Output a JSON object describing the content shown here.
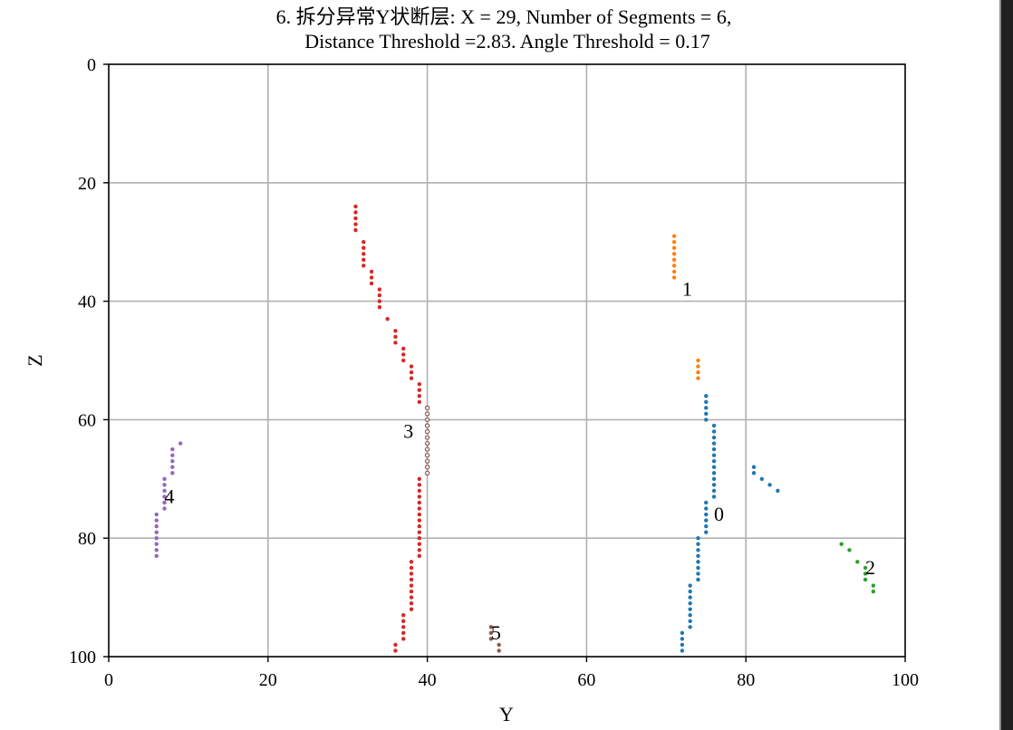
{
  "chart_data": {
    "type": "scatter",
    "title_line1": "6. 拆分异常Y状断层: X = 29, Number of Segments = 6,",
    "title_line2": "Distance Threshold =2.83. Angle Threshold = 0.17",
    "xlabel": "Y",
    "ylabel": "Z",
    "xlim": [
      0,
      100
    ],
    "ylim": [
      0,
      100
    ],
    "y_inverted": true,
    "grid": true,
    "x_ticks": [
      0,
      20,
      40,
      60,
      80,
      100
    ],
    "y_ticks": [
      0,
      20,
      40,
      60,
      80,
      100
    ],
    "colors": {
      "blue": "#1f77b4",
      "orange": "#ff7f0e",
      "green": "#2ca02c",
      "red": "#d62728",
      "purple": "#9467bd",
      "brown": "#8c564b",
      "grid": "#b0b0b0"
    },
    "series": [
      {
        "label": "0",
        "color": "blue",
        "label_pos": [
          76,
          76
        ],
        "points": [
          [
            75,
            56
          ],
          [
            75,
            57
          ],
          [
            75,
            58
          ],
          [
            75,
            59
          ],
          [
            75,
            60
          ],
          [
            76,
            61
          ],
          [
            76,
            62
          ],
          [
            76,
            63
          ],
          [
            76,
            64
          ],
          [
            76,
            65
          ],
          [
            76,
            66
          ],
          [
            76,
            67
          ],
          [
            76,
            68
          ],
          [
            76,
            69
          ],
          [
            76,
            70
          ],
          [
            76,
            71
          ],
          [
            76,
            72
          ],
          [
            76,
            73
          ],
          [
            75,
            74
          ],
          [
            75,
            75
          ],
          [
            75,
            76
          ],
          [
            75,
            77
          ],
          [
            75,
            78
          ],
          [
            75,
            79
          ],
          [
            74,
            80
          ],
          [
            74,
            81
          ],
          [
            74,
            82
          ],
          [
            74,
            83
          ],
          [
            74,
            84
          ],
          [
            74,
            85
          ],
          [
            74,
            86
          ],
          [
            74,
            87
          ],
          [
            73,
            88
          ],
          [
            73,
            89
          ],
          [
            73,
            90
          ],
          [
            73,
            91
          ],
          [
            73,
            92
          ],
          [
            73,
            93
          ],
          [
            73,
            94
          ],
          [
            73,
            95
          ],
          [
            72,
            96
          ],
          [
            72,
            97
          ],
          [
            72,
            98
          ],
          [
            72,
            99
          ],
          [
            81,
            68
          ],
          [
            81,
            69
          ],
          [
            82,
            70
          ],
          [
            83,
            71
          ],
          [
            84,
            72
          ]
        ]
      },
      {
        "label": "1",
        "color": "orange",
        "label_pos": [
          72,
          38
        ],
        "points": [
          [
            71,
            29
          ],
          [
            71,
            30
          ],
          [
            71,
            31
          ],
          [
            71,
            32
          ],
          [
            71,
            33
          ],
          [
            71,
            34
          ],
          [
            71,
            35
          ],
          [
            71,
            36
          ],
          [
            74,
            50
          ],
          [
            74,
            51
          ],
          [
            74,
            52
          ],
          [
            74,
            53
          ]
        ]
      },
      {
        "label": "2",
        "color": "green",
        "label_pos": [
          95,
          85
        ],
        "points": [
          [
            92,
            81
          ],
          [
            93,
            82
          ],
          [
            94,
            84
          ],
          [
            95,
            85
          ],
          [
            95,
            86
          ],
          [
            95,
            87
          ],
          [
            96,
            88
          ],
          [
            96,
            89
          ]
        ]
      },
      {
        "label": "3",
        "color": "red",
        "label_pos": [
          37,
          62
        ],
        "points": [
          [
            31,
            24
          ],
          [
            31,
            25
          ],
          [
            31,
            26
          ],
          [
            31,
            27
          ],
          [
            31,
            28
          ],
          [
            32,
            30
          ],
          [
            32,
            31
          ],
          [
            32,
            32
          ],
          [
            32,
            33
          ],
          [
            32,
            34
          ],
          [
            33,
            35
          ],
          [
            33,
            36
          ],
          [
            33,
            37
          ],
          [
            34,
            38
          ],
          [
            34,
            39
          ],
          [
            34,
            40
          ],
          [
            34,
            41
          ],
          [
            35,
            43
          ],
          [
            36,
            45
          ],
          [
            36,
            46
          ],
          [
            36,
            47
          ],
          [
            37,
            48
          ],
          [
            37,
            49
          ],
          [
            37,
            50
          ],
          [
            38,
            51
          ],
          [
            38,
            52
          ],
          [
            38,
            53
          ],
          [
            39,
            54
          ],
          [
            39,
            55
          ],
          [
            39,
            56
          ],
          [
            39,
            57
          ],
          [
            39,
            70
          ],
          [
            39,
            71
          ],
          [
            39,
            72
          ],
          [
            39,
            73
          ],
          [
            39,
            74
          ],
          [
            39,
            75
          ],
          [
            39,
            76
          ],
          [
            39,
            77
          ],
          [
            39,
            78
          ],
          [
            39,
            79
          ],
          [
            39,
            80
          ],
          [
            39,
            81
          ],
          [
            39,
            82
          ],
          [
            39,
            83
          ],
          [
            38,
            84
          ],
          [
            38,
            85
          ],
          [
            38,
            86
          ],
          [
            38,
            87
          ],
          [
            38,
            88
          ],
          [
            38,
            89
          ],
          [
            38,
            90
          ],
          [
            38,
            91
          ],
          [
            38,
            92
          ],
          [
            37,
            93
          ],
          [
            37,
            94
          ],
          [
            37,
            95
          ],
          [
            37,
            96
          ],
          [
            37,
            97
          ],
          [
            36,
            98
          ],
          [
            36,
            99
          ]
        ]
      },
      {
        "label": "4",
        "color": "purple",
        "label_pos": [
          7,
          73
        ],
        "points": [
          [
            9,
            64
          ],
          [
            8,
            65
          ],
          [
            8,
            66
          ],
          [
            8,
            67
          ],
          [
            8,
            68
          ],
          [
            8,
            69
          ],
          [
            7,
            70
          ],
          [
            7,
            71
          ],
          [
            7,
            72
          ],
          [
            7,
            73
          ],
          [
            7,
            74
          ],
          [
            7,
            75
          ],
          [
            6,
            76
          ],
          [
            6,
            77
          ],
          [
            6,
            78
          ],
          [
            6,
            79
          ],
          [
            6,
            80
          ],
          [
            6,
            81
          ],
          [
            6,
            82
          ],
          [
            6,
            83
          ]
        ]
      },
      {
        "label": "5",
        "color": "brown",
        "label_pos": [
          48,
          96
        ],
        "points": [
          [
            48,
            95
          ],
          [
            48,
            96
          ],
          [
            48,
            97
          ],
          [
            49,
            98
          ],
          [
            49,
            99
          ]
        ]
      }
    ],
    "extra_series": [
      {
        "color": "brown",
        "hollow": true,
        "points": [
          [
            40,
            58
          ],
          [
            40,
            59
          ],
          [
            40,
            60
          ],
          [
            40,
            61
          ],
          [
            40,
            62
          ],
          [
            40,
            63
          ],
          [
            40,
            64
          ],
          [
            40,
            65
          ],
          [
            40,
            66
          ],
          [
            40,
            67
          ],
          [
            40,
            68
          ],
          [
            40,
            69
          ]
        ]
      }
    ]
  }
}
